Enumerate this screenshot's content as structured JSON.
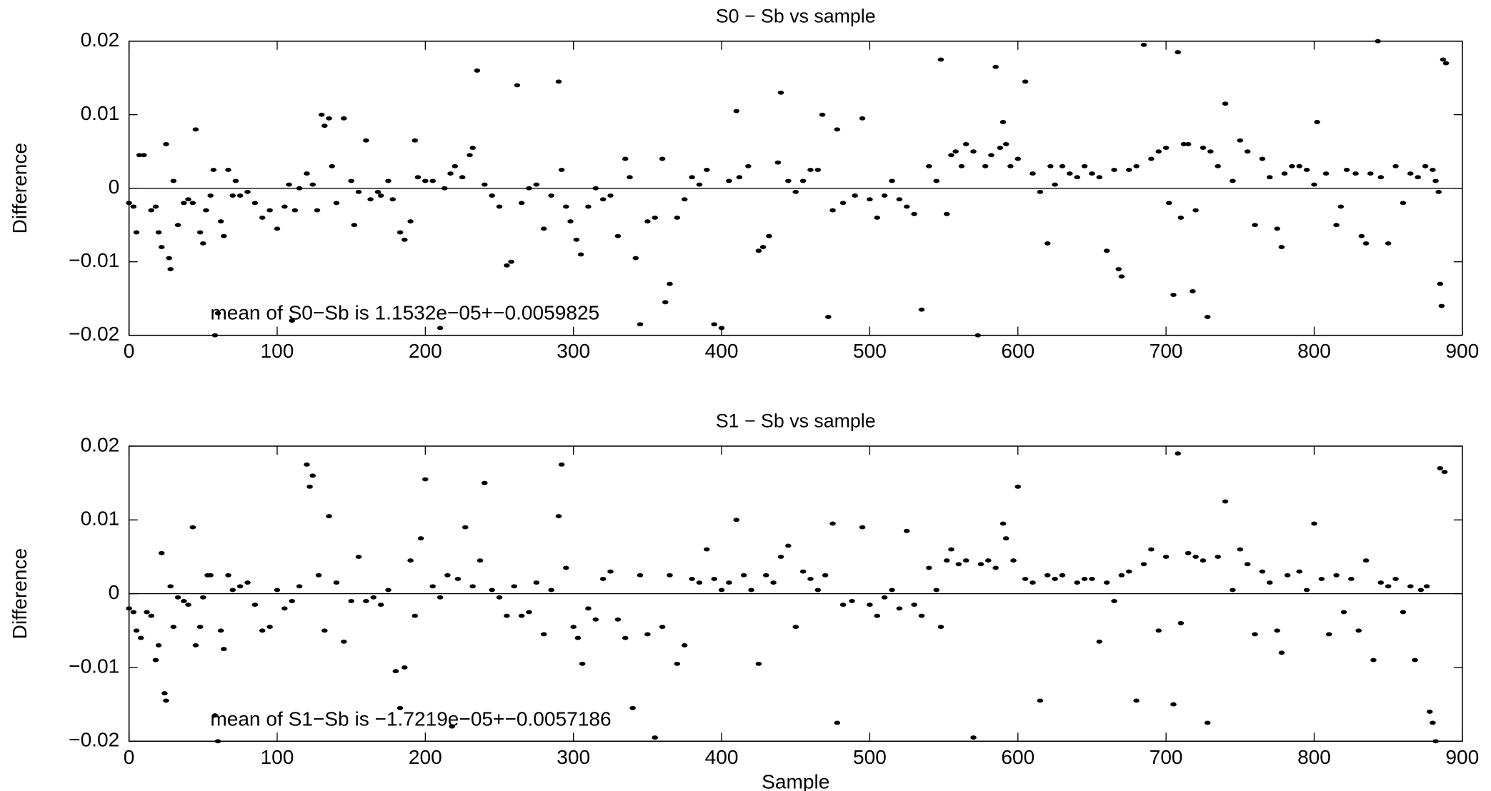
{
  "chart_data": [
    {
      "type": "scatter",
      "title": "S0 − Sb vs sample",
      "ylabel": "Difference",
      "annotation": "mean  of S0−Sb is 1.1532e−05+−0.0059825",
      "color": "#000000",
      "reference_line": 0,
      "xlim": [
        0,
        900
      ],
      "ylim": [
        -0.02,
        0.02
      ],
      "xticks": [
        0,
        100,
        200,
        300,
        400,
        500,
        600,
        700,
        800,
        900
      ],
      "yticks": [
        {
          "value": -0.02,
          "label": "−0.02"
        },
        {
          "value": -0.01,
          "label": "−0.01"
        },
        0,
        0.01,
        0.02
      ],
      "x": [
        0,
        3,
        5,
        7,
        10,
        15,
        18,
        20,
        22,
        25,
        27,
        28,
        30,
        33,
        37,
        40,
        43,
        45,
        48,
        50,
        52,
        55,
        57,
        58,
        60,
        62,
        64,
        67,
        70,
        72,
        75,
        80,
        85,
        90,
        95,
        100,
        105,
        108,
        110,
        112,
        115,
        120,
        124,
        127,
        130,
        132,
        135,
        137,
        140,
        145,
        150,
        152,
        155,
        160,
        163,
        168,
        170,
        175,
        178,
        183,
        186,
        190,
        193,
        195,
        200,
        205,
        210,
        213,
        217,
        220,
        225,
        230,
        232,
        235,
        240,
        245,
        250,
        255,
        258,
        262,
        265,
        270,
        275,
        280,
        285,
        290,
        292,
        295,
        298,
        302,
        305,
        310,
        315,
        320,
        325,
        330,
        335,
        338,
        342,
        345,
        350,
        355,
        360,
        362,
        365,
        370,
        375,
        380,
        385,
        390,
        395,
        400,
        405,
        410,
        412,
        418,
        425,
        428,
        432,
        438,
        440,
        445,
        450,
        455,
        460,
        465,
        468,
        472,
        475,
        478,
        482,
        490,
        495,
        500,
        505,
        510,
        515,
        520,
        525,
        530,
        535,
        540,
        545,
        548,
        552,
        555,
        558,
        562,
        565,
        570,
        573,
        578,
        582,
        585,
        588,
        590,
        592,
        595,
        600,
        605,
        610,
        615,
        620,
        622,
        625,
        630,
        635,
        640,
        645,
        650,
        655,
        660,
        665,
        668,
        670,
        675,
        680,
        685,
        690,
        695,
        700,
        702,
        705,
        708,
        710,
        712,
        715,
        718,
        720,
        725,
        728,
        730,
        735,
        740,
        745,
        750,
        755,
        760,
        765,
        770,
        775,
        778,
        780,
        785,
        790,
        795,
        800,
        802,
        808,
        815,
        818,
        822,
        828,
        832,
        835,
        838,
        843,
        845,
        850,
        855,
        860,
        865,
        870,
        875,
        880,
        882,
        884,
        885,
        886,
        887,
        889
      ],
      "values": [
        -0.002,
        -0.0025,
        -0.006,
        0.0045,
        0.0045,
        -0.003,
        -0.0025,
        -0.006,
        -0.008,
        0.006,
        -0.0095,
        -0.011,
        0.001,
        -0.005,
        -0.002,
        -0.0015,
        -0.002,
        0.008,
        -0.006,
        -0.0075,
        -0.003,
        -0.001,
        0.0025,
        -0.02,
        -0.017,
        -0.0045,
        -0.0065,
        0.0025,
        -0.001,
        0.001,
        -0.001,
        -0.0005,
        -0.002,
        -0.004,
        -0.003,
        -0.0055,
        -0.0025,
        0.0005,
        -0.018,
        -0.003,
        0,
        0.002,
        0.0005,
        -0.003,
        0.01,
        0.0085,
        0.0095,
        0.003,
        -0.002,
        0.0095,
        0.001,
        -0.005,
        -0.0005,
        0.0065,
        -0.0015,
        -0.0005,
        -0.001,
        0.001,
        -0.0015,
        -0.006,
        -0.007,
        -0.0045,
        0.0065,
        0.0015,
        0.001,
        0.001,
        -0.019,
        0,
        0.002,
        0.003,
        0.0015,
        0.0045,
        0.0055,
        0.016,
        0.0005,
        -0.001,
        -0.0025,
        -0.0105,
        -0.01,
        0.014,
        -0.002,
        0,
        0.0005,
        -0.0055,
        -0.001,
        0.0145,
        0.0025,
        -0.0025,
        -0.0045,
        -0.007,
        -0.009,
        -0.0025,
        0,
        -0.0015,
        -0.001,
        -0.0065,
        0.004,
        0.0015,
        -0.0095,
        -0.0185,
        -0.0045,
        -0.004,
        0.004,
        -0.0155,
        -0.013,
        -0.004,
        -0.0015,
        0.0015,
        0.0005,
        0.0025,
        -0.0185,
        -0.019,
        0.001,
        0.0105,
        0.0015,
        0.003,
        -0.0085,
        -0.008,
        -0.0065,
        0.0035,
        0.013,
        0.001,
        -0.0005,
        0.001,
        0.0025,
        0.0025,
        0.01,
        -0.0175,
        -0.003,
        0.008,
        -0.002,
        -0.001,
        0.0095,
        -0.0015,
        -0.004,
        -0.001,
        0.001,
        -0.0015,
        -0.0025,
        -0.0035,
        -0.0165,
        0.003,
        0.001,
        0.0175,
        -0.0035,
        0.0045,
        0.005,
        0.003,
        0.006,
        0.005,
        -0.02,
        0.003,
        0.0045,
        0.0165,
        0.0055,
        0.009,
        0.006,
        0.003,
        0.004,
        0.0145,
        0.002,
        -0.0005,
        -0.0075,
        0.003,
        0.0005,
        0.003,
        0.002,
        0.0015,
        0.003,
        0.002,
        0.0015,
        -0.0085,
        0.0025,
        -0.011,
        -0.012,
        0.0025,
        0.003,
        0.0195,
        0.004,
        0.005,
        0.0055,
        -0.002,
        -0.0145,
        0.0185,
        -0.004,
        0.006,
        0.006,
        -0.014,
        -0.003,
        0.0055,
        -0.0175,
        0.005,
        0.003,
        0.0115,
        0.001,
        0.0065,
        0.005,
        -0.005,
        0.004,
        0.0015,
        -0.0055,
        -0.008,
        0.002,
        0.003,
        0.003,
        0.0025,
        0.0005,
        0.009,
        0.002,
        -0.005,
        -0.0025,
        0.0025,
        0.002,
        -0.0065,
        -0.0075,
        0.002,
        0.02,
        0.0015,
        -0.0075,
        0.003,
        -0.002,
        0.002,
        0.0015,
        0.003,
        0.0025,
        0.001,
        -0.0005,
        -0.013,
        -0.016,
        0.0175,
        0.017
      ]
    },
    {
      "type": "scatter",
      "title": "S1 − Sb vs sample",
      "ylabel": "Difference",
      "xlabel": "Sample",
      "annotation": "mean  of S1−Sb is −1.7219e−05+−0.0057186",
      "color": "#000000",
      "reference_line": 0,
      "xlim": [
        0,
        900
      ],
      "ylim": [
        -0.02,
        0.02
      ],
      "xticks": [
        0,
        100,
        200,
        300,
        400,
        500,
        600,
        700,
        800,
        900
      ],
      "yticks": [
        {
          "value": -0.02,
          "label": "−0.02"
        },
        {
          "value": -0.01,
          "label": "−0.01"
        },
        0,
        0.01,
        0.02
      ],
      "x": [
        0,
        3,
        5,
        8,
        12,
        15,
        18,
        20,
        22,
        24,
        25,
        28,
        30,
        33,
        37,
        40,
        43,
        45,
        48,
        50,
        53,
        55,
        58,
        60,
        62,
        64,
        67,
        70,
        75,
        80,
        85,
        90,
        95,
        100,
        105,
        110,
        115,
        120,
        122,
        124,
        128,
        132,
        135,
        140,
        145,
        150,
        155,
        160,
        165,
        170,
        175,
        180,
        183,
        186,
        190,
        193,
        197,
        200,
        205,
        210,
        215,
        218,
        222,
        227,
        232,
        237,
        240,
        245,
        250,
        255,
        260,
        265,
        270,
        275,
        280,
        285,
        290,
        292,
        295,
        300,
        303,
        306,
        310,
        315,
        320,
        325,
        330,
        335,
        340,
        345,
        350,
        355,
        360,
        365,
        370,
        375,
        380,
        385,
        390,
        395,
        400,
        405,
        410,
        415,
        420,
        425,
        430,
        435,
        440,
        445,
        450,
        455,
        460,
        465,
        470,
        475,
        478,
        482,
        488,
        495,
        500,
        505,
        510,
        515,
        520,
        525,
        530,
        535,
        540,
        545,
        548,
        552,
        555,
        560,
        565,
        570,
        575,
        580,
        585,
        590,
        592,
        597,
        600,
        605,
        610,
        615,
        620,
        625,
        630,
        640,
        645,
        650,
        655,
        660,
        665,
        670,
        675,
        680,
        685,
        690,
        695,
        700,
        705,
        708,
        710,
        715,
        720,
        725,
        728,
        735,
        740,
        745,
        750,
        755,
        760,
        765,
        770,
        775,
        778,
        782,
        790,
        795,
        800,
        805,
        810,
        815,
        820,
        825,
        830,
        835,
        840,
        845,
        850,
        855,
        860,
        865,
        868,
        872,
        876,
        878,
        880,
        882,
        885,
        888
      ],
      "values": [
        -0.002,
        -0.0025,
        -0.005,
        -0.006,
        -0.0025,
        -0.003,
        -0.009,
        -0.007,
        0.0055,
        -0.0135,
        -0.0145,
        0.001,
        -0.0045,
        -0.0005,
        -0.001,
        -0.0015,
        0.009,
        -0.007,
        -0.0045,
        -0.0005,
        0.0025,
        0.0025,
        -0.0165,
        -0.02,
        -0.005,
        -0.0075,
        0.0025,
        0.0005,
        0.001,
        0.0015,
        -0.0015,
        -0.005,
        -0.0045,
        0.0005,
        -0.002,
        -0.001,
        0.001,
        0.0175,
        0.0145,
        0.016,
        0.0025,
        -0.005,
        0.0105,
        0.0015,
        -0.0065,
        -0.001,
        0.005,
        -0.001,
        -0.0005,
        -0.0015,
        0.0005,
        -0.0105,
        -0.0155,
        -0.01,
        0.0045,
        -0.003,
        0.0075,
        0.0155,
        0.001,
        -0.0005,
        0.0025,
        -0.018,
        0.002,
        0.009,
        0.001,
        0.0045,
        0.015,
        0.0005,
        -0.0005,
        -0.003,
        0.001,
        -0.003,
        -0.0025,
        0.0015,
        -0.0055,
        0.0005,
        0.0105,
        0.0175,
        0.0035,
        -0.0045,
        -0.006,
        -0.0095,
        -0.002,
        -0.0035,
        0.002,
        0.003,
        -0.0035,
        -0.006,
        -0.0155,
        0.0025,
        -0.0055,
        -0.0195,
        -0.0045,
        0.0025,
        -0.0095,
        -0.007,
        0.002,
        0.0015,
        0.006,
        0.002,
        0.0005,
        0.0015,
        0.01,
        0.0025,
        0.0005,
        -0.0095,
        0.0025,
        0.0015,
        0.005,
        0.0065,
        -0.0045,
        0.003,
        0.002,
        0.0005,
        0.0025,
        0.0095,
        -0.0175,
        -0.0015,
        -0.001,
        0.009,
        -0.0015,
        -0.003,
        -0.0005,
        0.0005,
        -0.002,
        0.0085,
        -0.0015,
        -0.003,
        0.0035,
        0.0005,
        -0.0045,
        0.0045,
        0.006,
        0.004,
        0.0045,
        -0.0195,
        0.004,
        0.0045,
        0.0035,
        0.0095,
        0.0075,
        0.0045,
        0.0145,
        0.002,
        0.0015,
        -0.0145,
        0.0025,
        0.002,
        0.0025,
        0.0015,
        0.002,
        0.002,
        -0.0065,
        0.0015,
        -0.001,
        0.0025,
        0.003,
        -0.0145,
        0.004,
        0.006,
        -0.005,
        0.005,
        -0.015,
        0.019,
        -0.004,
        0.0055,
        0.005,
        0.0045,
        -0.0175,
        0.005,
        0.0125,
        0.0005,
        0.006,
        0.004,
        -0.0055,
        0.003,
        0.0015,
        -0.005,
        -0.008,
        0.0025,
        0.003,
        0.0005,
        0.0095,
        0.002,
        -0.0055,
        0.0025,
        -0.0025,
        0.002,
        -0.005,
        0.0045,
        -0.009,
        0.0015,
        0.001,
        0.002,
        -0.0025,
        0.001,
        -0.009,
        0.0005,
        0.001,
        -0.016,
        -0.0175,
        -0.02,
        0.017,
        0.0165
      ]
    }
  ]
}
